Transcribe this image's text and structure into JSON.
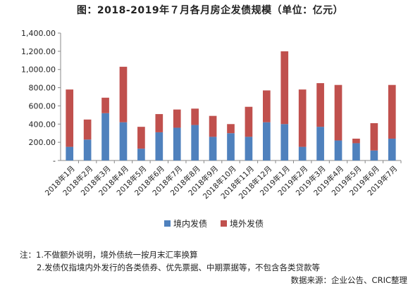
{
  "chart_data": {
    "type": "bar",
    "stacked": true,
    "title": "图：2018-2019年７月各月房企发债规模（单位：亿元）",
    "categories": [
      "2018年1月",
      "2018年2月",
      "2018年3月",
      "2018年4月",
      "2018年5月",
      "2018年6月",
      "2018年7月",
      "2018年8月",
      "2018年9月",
      "2018年10月",
      "2018年11月",
      "2018年12月",
      "2019年1月",
      "2019年2月",
      "2019年3月",
      "2019年4月",
      "2019年5月",
      "2019年6月",
      "2019年7月"
    ],
    "series": [
      {
        "name": "境内发债",
        "color": "#4f81bd",
        "values": [
          150,
          230,
          520,
          420,
          130,
          310,
          360,
          390,
          260,
          300,
          260,
          420,
          400,
          150,
          370,
          220,
          190,
          110,
          240
        ]
      },
      {
        "name": "境外发债",
        "color": "#c0504d",
        "values": [
          630,
          220,
          170,
          610,
          240,
          200,
          200,
          180,
          230,
          100,
          330,
          350,
          800,
          630,
          480,
          610,
          50,
          300,
          590
        ]
      }
    ],
    "yticks": [
      "-",
      "200.00",
      "400.00",
      "600.00",
      "800.00",
      "1,000.00",
      "1,200.00",
      "1,400.00"
    ],
    "ylim": [
      0,
      1400
    ],
    "grid": false,
    "legend_position": "bottom"
  },
  "notes": {
    "line1": "注：1.不做额外说明，境外债统一按月末汇率换算",
    "line2": "2.发债仅指境内外发行的各类债券、优先票据、中期票据等，不包含各类贷款等",
    "source": "数据来源：企业公告、CRIC整理"
  }
}
